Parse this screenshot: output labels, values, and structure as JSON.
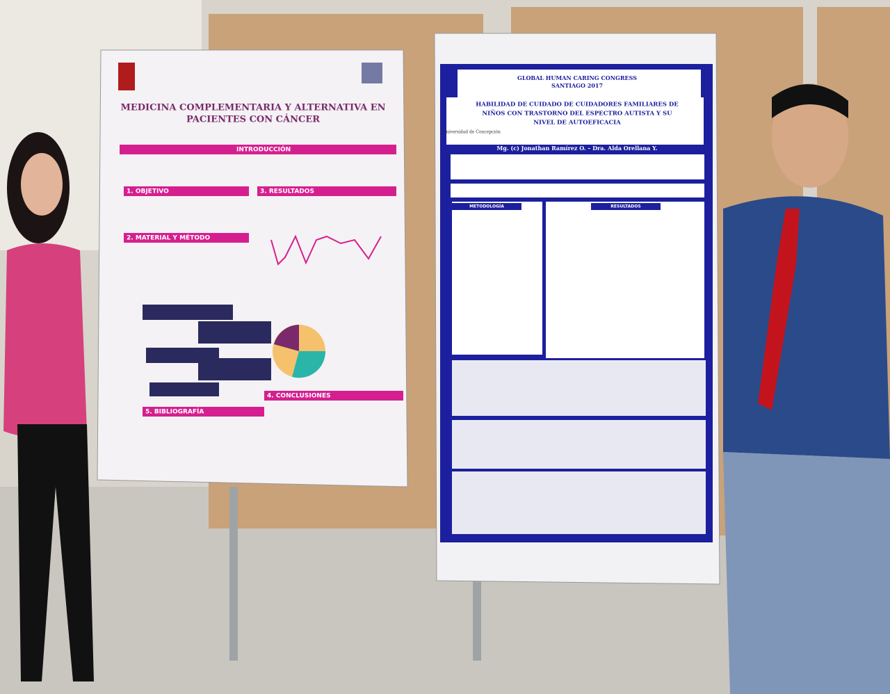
{
  "left_poster": {
    "title_lines": [
      "MEDICINA COMPLEMENTARIA Y ALTERNATIVA EN",
      "PACIENTES CON CÁNCER"
    ],
    "sections": [
      "INTRODUCCIÓN",
      "1. OBJETIVO",
      "2. MATERIAL Y MÉTODO",
      "3. RESULTADOS",
      "4. CONCLUSIONES",
      "5. BIBLIOGRAFÍA"
    ]
  },
  "right_poster": {
    "congress_lines": [
      "GLOBAL HUMAN CARING CONGRESS",
      "SANTIAGO 2017"
    ],
    "university": "Universidad de Concepción",
    "title_lines": [
      "HABILIDAD DE CUIDADO DE CUIDADORES FAMILIARES DE",
      "NIÑOS CON TRASTORNO DEL ESPECTRO AUTISTA Y SU",
      "NIVEL DE AUTOEFICACIA"
    ],
    "authors": "Mg. (c) Jonathan Ramírez O. – Dra. Alda Orellana Y.",
    "columns": [
      "METODOLOGÍA",
      "RESULTADOS"
    ]
  }
}
